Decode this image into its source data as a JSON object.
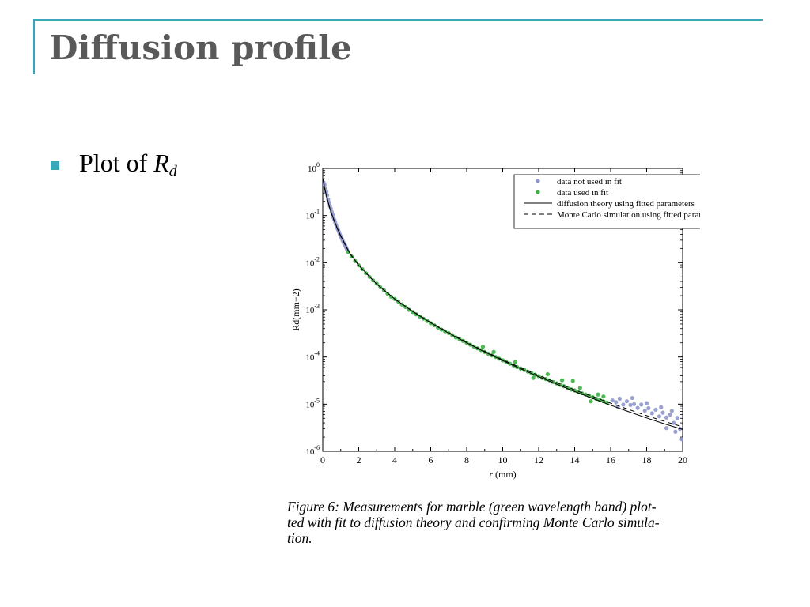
{
  "slide": {
    "title": "Diffusion profile",
    "bullet_text": "Plot of ",
    "bullet_symbol": "R",
    "bullet_subscript": "d",
    "caption_lines": [
      "Figure 6: Measurements for marble (green wavelength band) plot-",
      "ted with fit to diffusion theory and confirming Monte Carlo simula-",
      "tion."
    ]
  },
  "colors": {
    "accent": "#3aa8b8",
    "title": "#595959",
    "data_not_used": "#8f97cc",
    "data_used": "#3cb043"
  },
  "chart_data": {
    "type": "scatter",
    "xlabel": "r (mm)",
    "ylabel": "Rd(mm−2)",
    "xlim": [
      0,
      20
    ],
    "ylim": [
      1e-06,
      1
    ],
    "yscale": "log",
    "xticks": [
      0,
      2,
      4,
      6,
      8,
      10,
      12,
      14,
      16,
      18,
      20
    ],
    "yticks": [
      1,
      0.1,
      0.01,
      0.001,
      0.0001,
      1e-05,
      1e-06
    ],
    "ytick_labels": [
      [
        "10",
        "0"
      ],
      [
        "10",
        "-1"
      ],
      [
        "10",
        "-2"
      ],
      [
        "10",
        "-3"
      ],
      [
        "10",
        "-4"
      ],
      [
        "10",
        "-5"
      ],
      [
        "10",
        "-6"
      ]
    ],
    "legend_position": "top-right",
    "series": [
      {
        "name": "data not used in fit",
        "kind": "scatter",
        "color": "#8f97cc",
        "points": [
          [
            0.05,
            0.5
          ],
          [
            0.1,
            0.45
          ],
          [
            0.15,
            0.38
          ],
          [
            0.2,
            0.32
          ],
          [
            0.25,
            0.27
          ],
          [
            0.3,
            0.22
          ],
          [
            0.35,
            0.19
          ],
          [
            0.4,
            0.16
          ],
          [
            0.45,
            0.14
          ],
          [
            0.5,
            0.12
          ],
          [
            0.55,
            0.105
          ],
          [
            0.6,
            0.09
          ],
          [
            0.65,
            0.08
          ],
          [
            0.7,
            0.07
          ],
          [
            0.75,
            0.062
          ],
          [
            0.8,
            0.055
          ],
          [
            0.85,
            0.05
          ],
          [
            0.9,
            0.045
          ],
          [
            0.95,
            0.04
          ],
          [
            1.0,
            0.036
          ],
          [
            1.05,
            0.033
          ],
          [
            1.1,
            0.03
          ],
          [
            1.15,
            0.027
          ],
          [
            1.2,
            0.025
          ],
          [
            1.25,
            0.023
          ],
          [
            1.3,
            0.021
          ],
          [
            1.35,
            0.019
          ],
          [
            16.1,
            1.2e-05
          ],
          [
            16.3,
            1.1e-05
          ],
          [
            16.5,
            1.3e-05
          ],
          [
            16.7,
            9.8e-06
          ],
          [
            16.9,
            1.15e-05
          ],
          [
            17.1,
            9.6e-06
          ],
          [
            17.3,
            1e-05
          ],
          [
            17.5,
            8.3e-06
          ],
          [
            17.7,
            9.8e-06
          ],
          [
            17.9,
            7.3e-06
          ],
          [
            18.1,
            8.2e-06
          ],
          [
            18.3,
            6.4e-06
          ],
          [
            18.5,
            7.6e-06
          ],
          [
            18.7,
            5.5e-06
          ],
          [
            18.9,
            6.6e-06
          ],
          [
            19.1,
            5.2e-06
          ],
          [
            19.3,
            6e-06
          ],
          [
            19.5,
            4e-06
          ],
          [
            19.7,
            5.1e-06
          ],
          [
            19.85,
            3e-06
          ],
          [
            19.95,
            1.8e-06
          ],
          [
            19.6,
            2.6e-06
          ],
          [
            19.1,
            3.1e-06
          ],
          [
            16.4,
            8.8e-06
          ],
          [
            17.2,
            1.35e-05
          ],
          [
            18.0,
            1.05e-05
          ],
          [
            18.8,
            8.6e-06
          ],
          [
            19.4,
            7.2e-06
          ]
        ]
      },
      {
        "name": "data used in fit",
        "kind": "scatter",
        "color": "#3cb043",
        "points": [
          [
            1.4,
            0.017
          ],
          [
            1.6,
            0.0135
          ],
          [
            1.8,
            0.0108
          ],
          [
            2.0,
            0.0088
          ],
          [
            2.2,
            0.0073
          ],
          [
            2.4,
            0.006
          ],
          [
            2.6,
            0.005
          ],
          [
            2.8,
            0.0042
          ],
          [
            3.0,
            0.0036
          ],
          [
            3.2,
            0.003
          ],
          [
            3.4,
            0.0026
          ],
          [
            3.6,
            0.0022
          ],
          [
            3.8,
            0.0019
          ],
          [
            4.0,
            0.0017
          ],
          [
            4.2,
            0.0015
          ],
          [
            4.4,
            0.0013
          ],
          [
            4.6,
            0.00115
          ],
          [
            4.8,
            0.001
          ],
          [
            5.0,
            0.0009
          ],
          [
            5.2,
            0.0008
          ],
          [
            5.4,
            0.00072
          ],
          [
            5.6,
            0.00065
          ],
          [
            5.8,
            0.00058
          ],
          [
            6.0,
            0.00052
          ],
          [
            6.2,
            0.00047
          ],
          [
            6.4,
            0.00042
          ],
          [
            6.6,
            0.00038
          ],
          [
            6.8,
            0.00035
          ],
          [
            7.0,
            0.00032
          ],
          [
            7.2,
            0.00029
          ],
          [
            7.4,
            0.00026
          ],
          [
            7.6,
            0.00024
          ],
          [
            7.8,
            0.00022
          ],
          [
            8.0,
            0.0002
          ],
          [
            8.2,
            0.000182
          ],
          [
            8.4,
            0.000166
          ],
          [
            8.6,
            0.000152
          ],
          [
            8.8,
            0.00014
          ],
          [
            9.0,
            0.000128
          ],
          [
            9.2,
            0.000117
          ],
          [
            9.4,
            0.000108
          ],
          [
            9.6,
            0.0001
          ],
          [
            9.8,
            9.2e-05
          ],
          [
            10.0,
            8.5e-05
          ],
          [
            10.2,
            7.8e-05
          ],
          [
            10.4,
            7.2e-05
          ],
          [
            10.6,
            6.6e-05
          ],
          [
            10.8,
            6.1e-05
          ],
          [
            11.0,
            5.7e-05
          ],
          [
            11.2,
            5.3e-05
          ],
          [
            11.4,
            4.9e-05
          ],
          [
            11.6,
            4.5e-05
          ],
          [
            11.8,
            4.2e-05
          ],
          [
            12.0,
            3.9e-05
          ],
          [
            12.2,
            3.6e-05
          ],
          [
            12.4,
            3.4e-05
          ],
          [
            12.6,
            3.2e-05
          ],
          [
            12.8,
            2.95e-05
          ],
          [
            13.0,
            2.75e-05
          ],
          [
            13.2,
            2.55e-05
          ],
          [
            13.4,
            2.4e-05
          ],
          [
            13.6,
            2.2e-05
          ],
          [
            13.8,
            2.05e-05
          ],
          [
            14.0,
            1.95e-05
          ],
          [
            14.2,
            1.8e-05
          ],
          [
            14.4,
            1.7e-05
          ],
          [
            14.6,
            1.6e-05
          ],
          [
            14.8,
            1.5e-05
          ],
          [
            15.0,
            1.4e-05
          ],
          [
            15.2,
            1.3e-05
          ],
          [
            15.4,
            1.22e-05
          ],
          [
            15.6,
            1.15e-05
          ],
          [
            15.8,
            1.08e-05
          ],
          [
            13.9,
            3.1e-05
          ],
          [
            12.5,
            4.3e-05
          ],
          [
            14.9,
            1.15e-05
          ],
          [
            15.3,
            1.6e-05
          ],
          [
            11.7,
            3.6e-05
          ],
          [
            10.7,
            7.8e-05
          ],
          [
            9.5,
            0.000128
          ],
          [
            8.9,
            0.000165
          ],
          [
            15.6,
            1.45e-05
          ],
          [
            14.3,
            2.2e-05
          ],
          [
            13.3,
            3.2e-05
          ]
        ]
      },
      {
        "name": "diffusion theory using fitted parameters",
        "kind": "line",
        "style": "solid",
        "color": "#000000",
        "points": [
          [
            0.02,
            0.6
          ],
          [
            0.1,
            0.4
          ],
          [
            0.2,
            0.27
          ],
          [
            0.4,
            0.14
          ],
          [
            0.6,
            0.085
          ],
          [
            0.8,
            0.055
          ],
          [
            1.0,
            0.037
          ],
          [
            1.5,
            0.016
          ],
          [
            2.0,
            0.0088
          ],
          [
            3.0,
            0.0035
          ],
          [
            4.0,
            0.0017
          ],
          [
            5.0,
            0.00092
          ],
          [
            6.0,
            0.00053
          ],
          [
            7.0,
            0.00032
          ],
          [
            8.0,
            0.0002
          ],
          [
            9.0,
            0.000128
          ],
          [
            10.0,
            8.4e-05
          ],
          [
            11.0,
            5.6e-05
          ],
          [
            12.0,
            3.8e-05
          ],
          [
            13.0,
            2.65e-05
          ],
          [
            14.0,
            1.85e-05
          ],
          [
            15.0,
            1.32e-05
          ],
          [
            16.0,
            9.5e-06
          ],
          [
            17.0,
            6.9e-06
          ],
          [
            18.0,
            5.1e-06
          ],
          [
            19.0,
            3.8e-06
          ],
          [
            20.0,
            2.9e-06
          ]
        ]
      },
      {
        "name": "Monte Carlo simulation using fitted parameters",
        "kind": "line",
        "style": "dashed",
        "color": "#000000",
        "points": [
          [
            0.02,
            0.55
          ],
          [
            0.1,
            0.38
          ],
          [
            0.2,
            0.26
          ],
          [
            0.4,
            0.135
          ],
          [
            0.6,
            0.083
          ],
          [
            0.8,
            0.054
          ],
          [
            1.0,
            0.036
          ],
          [
            1.5,
            0.0158
          ],
          [
            2.0,
            0.0087
          ],
          [
            3.0,
            0.0035
          ],
          [
            4.0,
            0.0017
          ],
          [
            5.0,
            0.00093
          ],
          [
            6.0,
            0.00054
          ],
          [
            7.0,
            0.00033
          ],
          [
            8.0,
            0.000205
          ],
          [
            9.0,
            0.000132
          ],
          [
            10.0,
            8.7e-05
          ],
          [
            11.0,
            5.9e-05
          ],
          [
            12.0,
            4.05e-05
          ],
          [
            13.0,
            2.85e-05
          ],
          [
            14.0,
            2e-05
          ],
          [
            15.0,
            1.45e-05
          ],
          [
            16.0,
            1.05e-05
          ],
          [
            17.0,
            7.7e-06
          ],
          [
            18.0,
            5.7e-06
          ],
          [
            19.0,
            4.3e-06
          ],
          [
            20.0,
            3.3e-06
          ]
        ]
      }
    ]
  }
}
